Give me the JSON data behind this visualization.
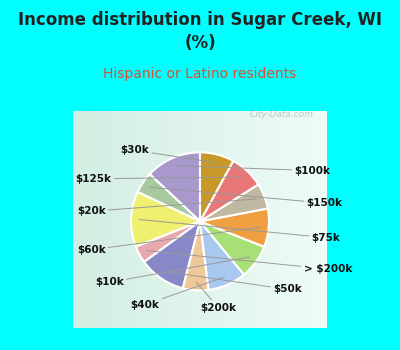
{
  "title": "Income distribution in Sugar Creek, WI\n(%)",
  "subtitle": "Hispanic or Latino residents",
  "labels": [
    "$100k",
    "$150k",
    "$75k",
    "> $200k",
    "$50k",
    "$200k",
    "$40k",
    "$10k",
    "$60k",
    "$20k",
    "$125k",
    "$30k"
  ],
  "values": [
    13,
    5,
    13,
    4,
    11,
    6,
    9,
    8,
    9,
    6,
    8,
    8
  ],
  "colors": [
    "#a898cc",
    "#a8c8a0",
    "#f0f070",
    "#e8a8b0",
    "#8888c8",
    "#f0c898",
    "#a8c8f0",
    "#a8e078",
    "#f0a040",
    "#c0b8a0",
    "#e87878",
    "#c89828"
  ],
  "outer_bg": "#00ffff",
  "title_color": "#222222",
  "subtitle_color": "#cc5533",
  "label_fontsize": 7.5,
  "title_fontsize": 12,
  "subtitle_fontsize": 10,
  "startangle": 90,
  "label_positions": {
    "$100k": [
      0.93,
      0.5,
      "left"
    ],
    "$150k": [
      1.05,
      0.18,
      "left"
    ],
    "$75k": [
      1.1,
      -0.16,
      "left"
    ],
    "> $200k": [
      1.02,
      -0.47,
      "left"
    ],
    "$50k": [
      0.72,
      -0.67,
      "left"
    ],
    "$200k": [
      0.18,
      -0.85,
      "center"
    ],
    "$40k": [
      -0.4,
      -0.82,
      "right"
    ],
    "$10k": [
      -0.75,
      -0.6,
      "right"
    ],
    "$60k": [
      -0.93,
      -0.28,
      "right"
    ],
    "$20k": [
      -0.93,
      0.1,
      "right"
    ],
    "$125k": [
      -0.87,
      0.42,
      "right"
    ],
    "$30k": [
      -0.5,
      0.7,
      "right"
    ]
  },
  "watermark": "City-Data.com"
}
